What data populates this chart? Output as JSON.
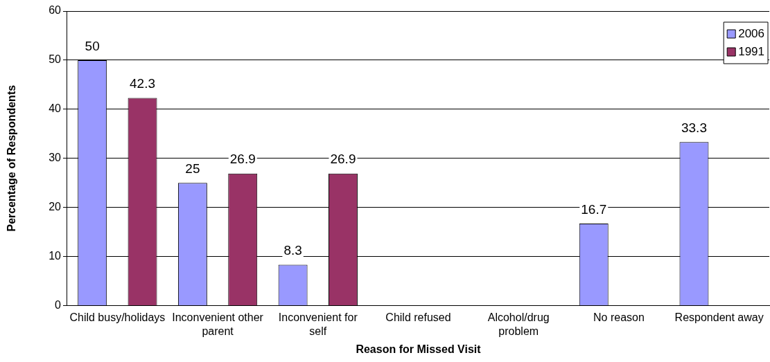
{
  "chart_data": {
    "type": "bar",
    "xlabel": "Reason for Missed Visit",
    "ylabel": "Percentage of Respondents",
    "categories": [
      "Child busy/holidays",
      "Inconvenient other parent",
      "Inconvenient for self",
      "Child refused",
      "Alcohol/drug problem",
      "No reason",
      "Respondent away"
    ],
    "series": [
      {
        "name": "2006",
        "color": "#9999ff",
        "values": [
          50,
          25,
          8.3,
          null,
          null,
          16.7,
          33.3
        ]
      },
      {
        "name": "1991",
        "color": "#993366",
        "values": [
          42.3,
          26.9,
          26.9,
          null,
          null,
          null,
          null
        ]
      }
    ],
    "ylim": [
      0,
      60
    ],
    "yticks": [
      0,
      10,
      20,
      30,
      40,
      50,
      60
    ],
    "grid": "y",
    "legend": "top right",
    "data_labels": true
  }
}
